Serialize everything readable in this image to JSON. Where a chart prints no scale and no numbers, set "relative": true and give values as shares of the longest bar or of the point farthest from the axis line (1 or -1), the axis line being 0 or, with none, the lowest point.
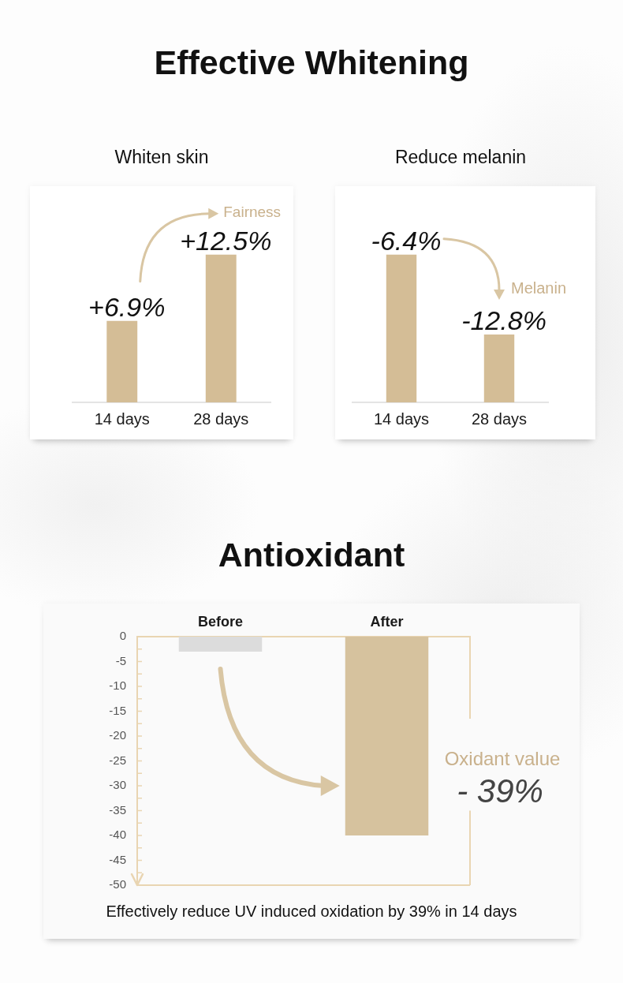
{
  "chart_data": [
    {
      "type": "bar",
      "title": "Effective Whitening",
      "subtitle": "Whiten skin",
      "categories": [
        "14 days",
        "28 days"
      ],
      "values": [
        6.9,
        12.5
      ],
      "value_labels": [
        "+6.9%",
        "+12.5%"
      ],
      "color": "#d4bd96",
      "annotations": [
        "Fairness"
      ],
      "tick_labels": "x"
    },
    {
      "type": "bar",
      "subtitle": "Reduce melanin",
      "categories": [
        "14 days",
        "28 days"
      ],
      "values": [
        1,
        0.46
      ],
      "relative": true,
      "color": "#d4bd96",
      "annotations": [
        {
          "text": "-6.4%",
          "x": "14 days",
          "y": 1
        },
        {
          "text": "-12.8%",
          "x": "28 days",
          "y": 0.46
        },
        "Melanin"
      ]
    },
    {
      "type": "bar",
      "title": "Antioxidant",
      "categories": [
        "Before",
        "After"
      ],
      "values": [
        -3,
        -40
      ],
      "colors": [
        "#dcdcdc",
        "#d6c29e"
      ],
      "ylim": [
        -50,
        0
      ],
      "yticks": [
        0,
        {
          "value": -2.5,
          "label": null
        },
        -5,
        {
          "value": -7.5,
          "label": null
        },
        -10,
        {
          "value": -12.5,
          "label": null
        },
        -15,
        {
          "value": -17.5,
          "label": null
        },
        -20,
        {
          "value": -22.5,
          "label": null
        },
        -25,
        {
          "value": -27.5,
          "label": null
        },
        -30,
        {
          "value": -32.5,
          "label": null
        },
        -35,
        {
          "value": -37.5,
          "label": null
        },
        -40,
        {
          "value": -42.5,
          "label": null
        },
        -45,
        {
          "value": -47.5,
          "label": null
        },
        -50
      ],
      "annotations": [
        "Oxidant value",
        "- 39%",
        "Effectively reduce UV induced oxidation by 39% in 14 days"
      ]
    }
  ]
}
